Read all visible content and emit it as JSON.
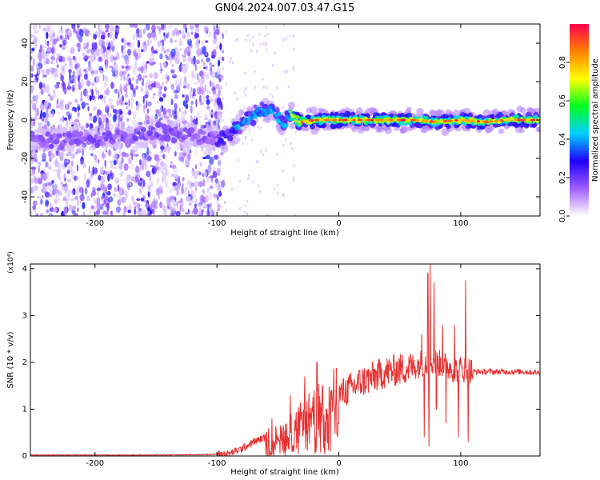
{
  "title": "GN04.2024.007.03.47.G15",
  "chart_data": [
    {
      "type": "heatmap",
      "xlabel": "Height of straight line (km)",
      "ylabel": "Frequency (Hz)",
      "xlim": [
        -253,
        165
      ],
      "ylim": [
        -50,
        50
      ],
      "xticks": [
        -200,
        -100,
        0,
        100
      ],
      "xtick_labels": [
        "-200",
        "-100",
        "0",
        "100"
      ],
      "yticks": [
        -40,
        -20,
        0,
        20,
        40
      ],
      "ytick_labels": [
        "-40",
        "-20",
        "0",
        "20",
        "40"
      ],
      "colorbar": {
        "label": "Normalized spectral amplitude",
        "range": [
          0,
          1
        ],
        "ticks": [
          0,
          0.2,
          0.4,
          0.6,
          0.8
        ],
        "tick_labels": [
          "0.0",
          "0.2",
          "0.4",
          "0.6",
          "0.8"
        ],
        "colors": [
          "#ffffff",
          "#9f5fff",
          "#2000ff",
          "#00d0ff",
          "#00ff20",
          "#ffff00",
          "#ff8000",
          "#ff0050"
        ]
      },
      "ridge": {
        "x": [
          -253,
          -200,
          -190,
          -175,
          -150,
          -120,
          -100,
          -90,
          -80,
          -70,
          -62,
          -55,
          -50,
          -45,
          -40,
          -35,
          -30,
          -20,
          -10,
          0,
          20,
          40,
          60,
          80,
          100,
          120,
          140,
          165
        ],
        "y": [
          -10,
          -10,
          -8,
          -10,
          -6,
          -8,
          -10,
          -8,
          -2,
          3,
          6,
          4,
          2,
          -3,
          3,
          0,
          -1,
          0,
          0,
          0,
          0,
          0,
          0,
          -1,
          0,
          -1,
          0,
          0
        ]
      }
    },
    {
      "type": "line",
      "xlabel": "Height of straight line (km)",
      "ylabel": "SNR (10 * v/v)",
      "y_multiplier": "(x10⁴)",
      "xlim": [
        -253,
        165
      ],
      "ylim": [
        0,
        4.1
      ],
      "xticks": [
        -200,
        -100,
        0,
        100
      ],
      "xtick_labels": [
        "-200",
        "-100",
        "0",
        "100"
      ],
      "yticks": [
        0,
        1,
        2,
        3,
        4
      ],
      "ytick_labels": [
        "0",
        "1",
        "2",
        "3",
        "4"
      ],
      "color": "#e83030",
      "x": [
        -253,
        -200,
        -150,
        -110,
        -90,
        -80,
        -70,
        -60,
        -50,
        -40,
        -30,
        -20,
        -10,
        0,
        10,
        20,
        30,
        40,
        50,
        60,
        65,
        70,
        75,
        80,
        85,
        90,
        95,
        100,
        105,
        110,
        120,
        130,
        140,
        150,
        165
      ],
      "y": [
        0.02,
        0.02,
        0.02,
        0.03,
        0.05,
        0.15,
        0.3,
        0.4,
        0.45,
        0.6,
        0.8,
        1.0,
        1.2,
        1.3,
        1.45,
        1.6,
        1.7,
        1.8,
        1.85,
        1.9,
        1.95,
        2.0,
        2.0,
        2.0,
        1.95,
        1.9,
        1.85,
        1.85,
        1.85,
        1.8,
        1.8,
        1.8,
        1.8,
        1.8,
        1.78
      ],
      "spikes": [
        {
          "x": -55,
          "y": 0.8
        },
        {
          "x": -40,
          "y": 1.3
        },
        {
          "x": -28,
          "y": 1.7
        },
        {
          "x": -18,
          "y": 2.0
        },
        {
          "x": 68,
          "y": 2.6
        },
        {
          "x": 70,
          "y": 0.4
        },
        {
          "x": 73,
          "y": 3.9
        },
        {
          "x": 74,
          "y": 0.2
        },
        {
          "x": 75,
          "y": 4.1
        },
        {
          "x": 78,
          "y": 3.7
        },
        {
          "x": 80,
          "y": 1.0
        },
        {
          "x": 85,
          "y": 2.8
        },
        {
          "x": 88,
          "y": 0.7
        },
        {
          "x": 95,
          "y": 2.8
        },
        {
          "x": 98,
          "y": 0.4
        },
        {
          "x": 104,
          "y": 3.75
        },
        {
          "x": 106,
          "y": 0.3
        }
      ]
    }
  ]
}
